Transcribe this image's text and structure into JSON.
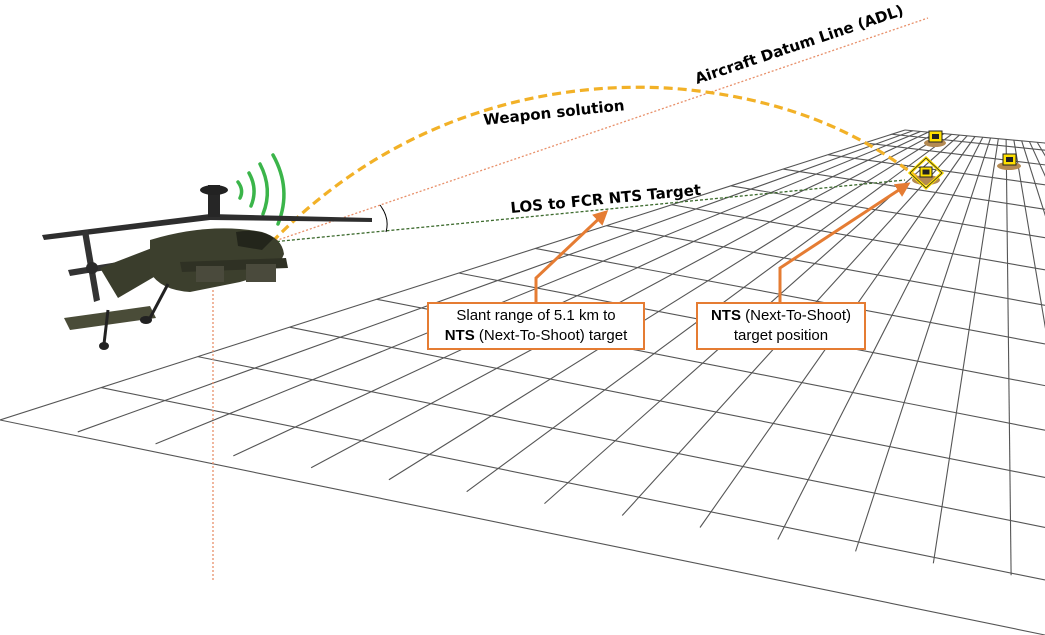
{
  "labels": {
    "adl": "Aircraft Datum Line (ADL)",
    "weapon": "Weapon solution",
    "los": "LOS to FCR NTS Target"
  },
  "callouts": {
    "slant": {
      "line1": "Slant range of 5.1 km to",
      "bold": "NTS",
      "line2_rest": " (Next-To-Shoot) target"
    },
    "nts": {
      "bold": "NTS",
      "line1_rest": " (Next-To-Shoot)",
      "line2": "target position"
    }
  },
  "colors": {
    "accent": "#e57c33",
    "weapon_arc": "#f2b127",
    "los_line": "#3d6b2e",
    "adl_line": "#e8906a",
    "grid": "#555555",
    "radar": "#3bb54a",
    "target": "#ffe000"
  }
}
